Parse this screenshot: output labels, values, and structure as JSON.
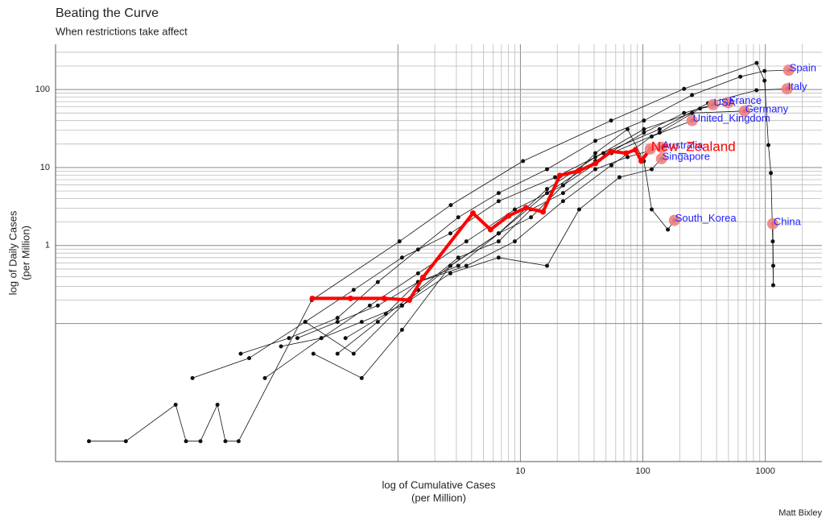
{
  "chart_data": {
    "type": "line",
    "title": "Beating the Curve",
    "subtitle": "When restrictions take affect",
    "xlabel": [
      "log of Cumulative Cases",
      "(per Million)"
    ],
    "ylabel": [
      "log of Daily Cases",
      "(per Million)"
    ],
    "caption": "Matt Bixley",
    "log_x": true,
    "log_y": true,
    "xlim": [
      0.0016,
      2900
    ],
    "ylim": [
      0.0017,
      380
    ],
    "xticks": [
      10,
      100,
      1000
    ],
    "yticks": [
      1,
      10,
      100
    ],
    "xgrid": [
      1,
      2,
      3,
      4,
      5,
      6,
      7,
      8,
      9,
      10,
      20,
      30,
      40,
      50,
      60,
      70,
      80,
      90,
      100,
      200,
      300,
      400,
      500,
      600,
      700,
      800,
      900,
      1000,
      2000
    ],
    "ygrid": [
      0.1,
      0.2,
      0.3,
      0.4,
      0.5,
      0.6,
      0.7,
      0.8,
      0.9,
      1,
      2,
      3,
      4,
      5,
      6,
      7,
      8,
      9,
      10,
      20,
      30,
      40,
      50,
      60,
      70,
      80,
      90,
      100,
      200,
      300
    ],
    "series": [
      {
        "name": "China",
        "color": "#111111",
        "label_color": "#1f1fff",
        "x": [
          0.003,
          0.006,
          0.0153,
          0.0186,
          0.0244,
          0.0336,
          0.039,
          0.05,
          0.198,
          1.03,
          2.7,
          10.5,
          55,
          217,
          850,
          985,
          1060,
          1110,
          1150,
          1160,
          1160,
          1150
        ],
        "values": [
          0.0031,
          0.0031,
          0.0091,
          0.0031,
          0.0031,
          0.0091,
          0.0031,
          0.0031,
          0.2,
          1.13,
          3.3,
          12.1,
          40,
          102,
          219,
          130,
          19.4,
          8.5,
          1.13,
          0.31,
          0.55,
          1.9
        ]
      },
      {
        "name": "Spain",
        "color": "#111111",
        "label_color": "#1f1fff",
        "x": [
          0.052,
          0.129,
          0.321,
          0.685,
          1.46,
          3.11,
          6.64,
          16.5,
          40.9,
          102,
          252,
          625,
          985,
          1552
        ],
        "values": [
          0.041,
          0.065,
          0.118,
          0.34,
          0.89,
          2.3,
          4.7,
          9.5,
          22,
          40,
          85,
          146,
          173,
          177
        ]
      },
      {
        "name": "Italy",
        "color": "#111111",
        "label_color": "#1f1fff",
        "x": [
          0.021,
          0.061,
          0.175,
          0.435,
          1.08,
          2.68,
          6.64,
          19.2,
          47.6,
          137,
          341,
          847,
          1505
        ],
        "values": [
          0.02,
          0.036,
          0.105,
          0.27,
          0.7,
          1.43,
          3.7,
          7.5,
          15.3,
          31,
          67,
          98,
          102
        ]
      },
      {
        "name": "France",
        "color": "#111111",
        "label_color": "#1f1fff",
        "x": [
          0.082,
          0.237,
          0.589,
          1.46,
          3.62,
          9.0,
          22.3,
          55.4,
          137,
          293,
          498
        ],
        "values": [
          0.02,
          0.065,
          0.17,
          0.44,
          1.13,
          2.9,
          5.9,
          15.3,
          28,
          57,
          68
        ]
      },
      {
        "name": "USA",
        "color": "#111111",
        "label_color": "#1f1fff",
        "x": [
          0.175,
          0.435,
          1.08,
          2.68,
          6.64,
          16.5,
          40.9,
          102,
          217,
          374
        ],
        "values": [
          0.105,
          0.041,
          0.17,
          0.55,
          1.43,
          4.7,
          12.1,
          28,
          50,
          64
        ]
      },
      {
        "name": "Germany",
        "color": "#111111",
        "label_color": "#1f1fff",
        "x": [
          0.204,
          0.506,
          1.08,
          2.68,
          6.64,
          16.5,
          40.9,
          102,
          252,
          675
        ],
        "values": [
          0.041,
          0.02,
          0.083,
          0.55,
          1.43,
          5.3,
          13.6,
          31,
          50,
          53
        ]
      },
      {
        "name": "United_Kingdom",
        "color": "#111111",
        "label_color": "#1f1fff",
        "x": [
          0.151,
          0.321,
          0.685,
          1.46,
          3.62,
          9.0,
          22.3,
          55.4,
          118,
          252
        ],
        "values": [
          0.065,
          0.105,
          0.17,
          0.34,
          0.55,
          1.13,
          3.7,
          10.7,
          25,
          40
        ]
      },
      {
        "name": "Australia",
        "color": "#111111",
        "label_color": "#1f1fff",
        "x": [
          0.321,
          0.685,
          1.46,
          3.11,
          6.64,
          12.2,
          22.3,
          40.9,
          75.0,
          142
        ],
        "values": [
          0.041,
          0.105,
          0.27,
          0.7,
          1.13,
          2.9,
          4.7,
          9.5,
          13.6,
          18.1
        ]
      },
      {
        "name": "Singapore",
        "color": "#111111",
        "label_color": "#1f1fff",
        "x": [
          0.111,
          0.237,
          0.506,
          1.08,
          2.68,
          6.64,
          16.5,
          30.2,
          64.4,
          118,
          142
        ],
        "values": [
          0.051,
          0.065,
          0.105,
          0.17,
          0.44,
          0.7,
          0.55,
          2.9,
          7.5,
          9.5,
          13.0
        ]
      },
      {
        "name": "South_Korea",
        "color": "#111111",
        "label_color": "#1f1fff",
        "x": [
          0.373,
          0.797,
          1.46,
          3.11,
          6.64,
          12.2,
          22.3,
          40.9,
          75.0,
          102,
          118,
          160,
          181
        ],
        "values": [
          0.065,
          0.133,
          0.34,
          0.55,
          1.43,
          2.3,
          5.9,
          15.3,
          31,
          12.1,
          2.9,
          1.6,
          2.1
        ]
      },
      {
        "name": "New_Zealand",
        "color": "#ff0000",
        "label_color": "#ff0000",
        "highlight": true,
        "x": [
          0.2,
          0.41,
          0.77,
          1.24,
          1.6,
          4.1,
          5.7,
          8.0,
          11.1,
          15.3,
          21,
          30,
          41,
          55,
          73,
          87,
          97,
          115
        ],
        "values": [
          0.21,
          0.21,
          0.21,
          0.2,
          0.39,
          2.6,
          1.6,
          2.4,
          3.05,
          2.7,
          7.9,
          9.1,
          11.3,
          16.1,
          15.3,
          16.9,
          12.1,
          17.3
        ]
      }
    ],
    "endpoint_color": "#f08080"
  }
}
